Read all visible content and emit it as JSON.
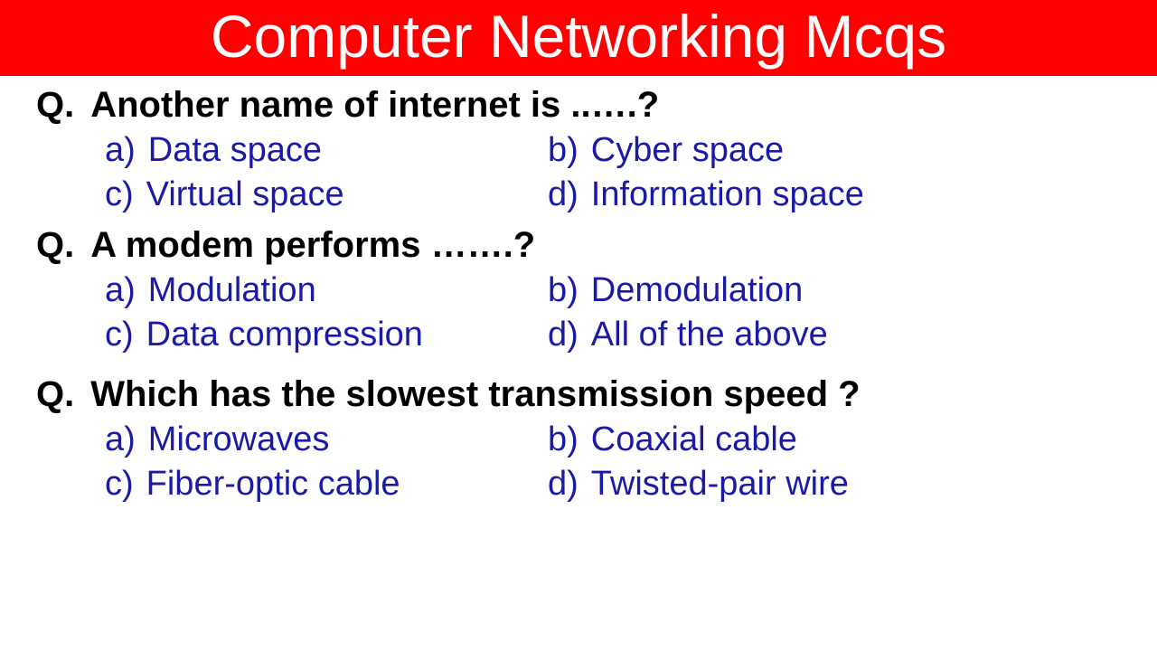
{
  "header": {
    "title": "Computer Networking Mcqs",
    "background_color": "#ff0000",
    "text_color": "#ffffff",
    "font_size": 66
  },
  "question_prefix": "Q.",
  "option_labels": [
    "a)",
    "b)",
    "c)",
    "d)"
  ],
  "question_color": "#000000",
  "option_color": "#1a1aa8",
  "questions": [
    {
      "text": "Another name of internet is ..….?",
      "options": [
        "Data space",
        "Cyber space",
        "Virtual space",
        "Information space"
      ]
    },
    {
      "text": "A modem performs …….?",
      "options": [
        "Modulation",
        "Demodulation",
        "Data compression",
        "All of the above"
      ]
    },
    {
      "text": "Which has the slowest transmission speed ?",
      "options": [
        "Microwaves",
        "Coaxial cable",
        "Fiber-optic cable",
        "Twisted-pair wire"
      ]
    }
  ]
}
